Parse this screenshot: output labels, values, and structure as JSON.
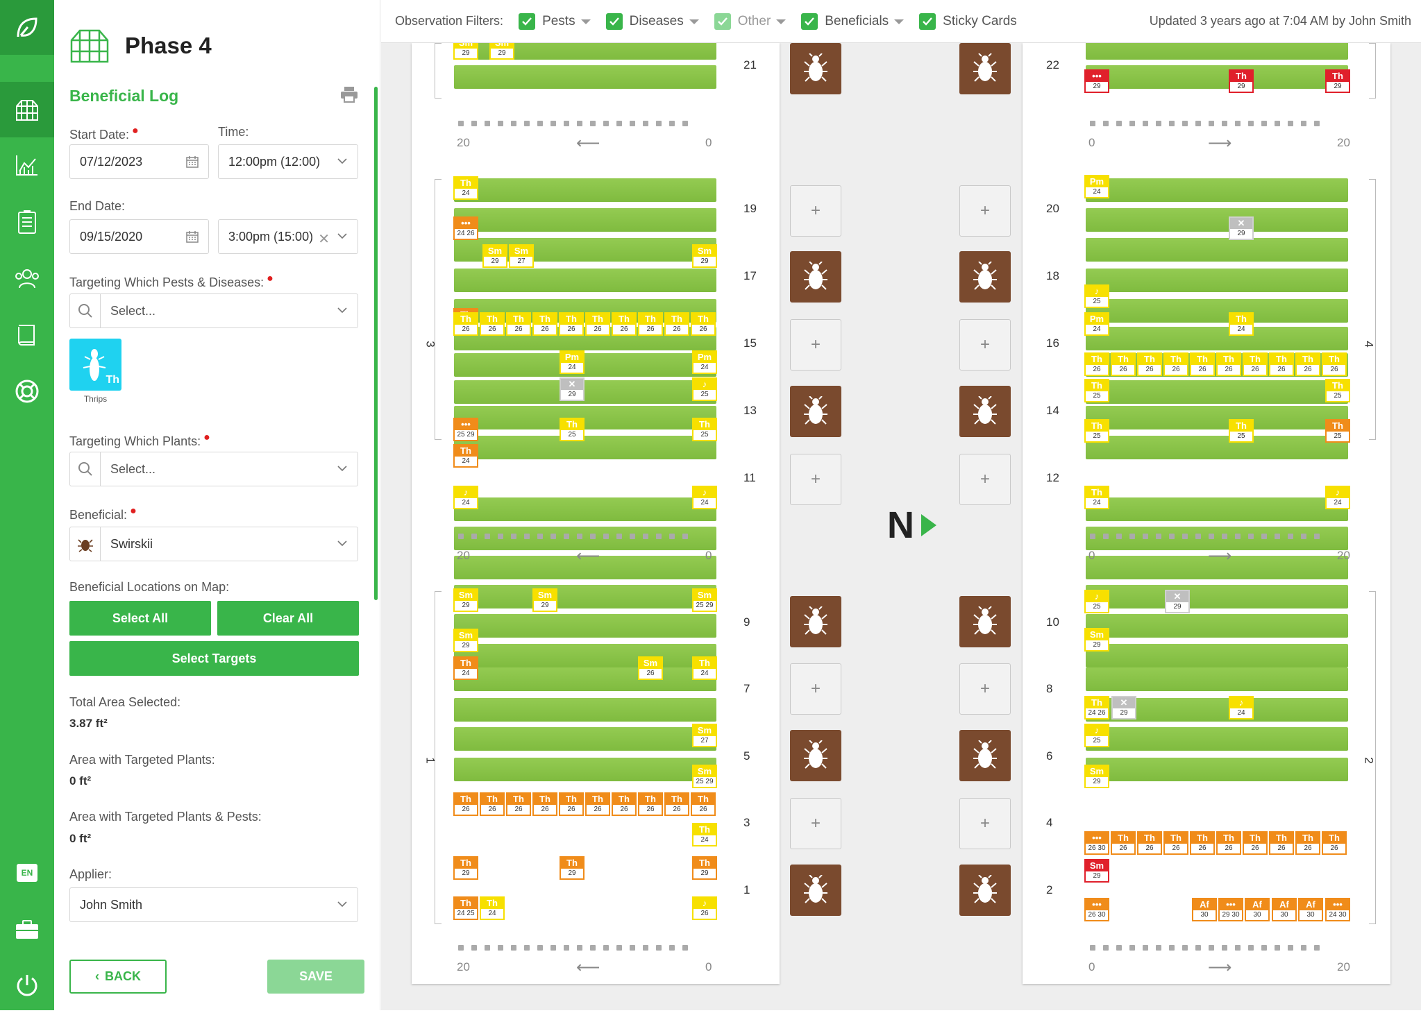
{
  "nav": {
    "items": [
      "greenhouse-icon",
      "chart-icon",
      "list-icon",
      "users-icon",
      "book-icon",
      "lifebuoy-icon"
    ],
    "lang": "EN"
  },
  "sidebar": {
    "page_title": "Phase 4",
    "section_title": "Beneficial Log",
    "start_date_label": "Start Date:",
    "start_date": "07/12/2023",
    "time_label": "Time:",
    "start_time": "12:00pm (12:00)",
    "end_date_label": "End Date:",
    "end_date": "09/15/2020",
    "end_time": "3:00pm (15:00)",
    "pests_label": "Targeting Which Pests & Diseases:",
    "pests_placeholder": "Select...",
    "pest_chip_label": "Thrips",
    "pest_chip_code": "Th",
    "plants_label": "Targeting Which Plants:",
    "plants_placeholder": "Select...",
    "beneficial_label": "Beneficial:",
    "beneficial_value": "Swirskii",
    "locations_label": "Beneficial Locations on Map:",
    "select_all": "Select All",
    "clear_all": "Clear All",
    "select_targets": "Select Targets",
    "total_area_label": "Total Area Selected:",
    "total_area": "3.87 ft²",
    "area_plants_label": "Area with Targeted Plants:",
    "area_plants": "0 ft²",
    "area_pests_label": "Area with Targeted Plants & Pests:",
    "area_pests": "0 ft²",
    "applier_label": "Applier:",
    "applier": "John Smith",
    "back": "BACK",
    "save": "SAVE"
  },
  "topbar": {
    "filters_label": "Observation Filters:",
    "filters": [
      {
        "label": "Pests",
        "checked": true,
        "light": false
      },
      {
        "label": "Diseases",
        "checked": true,
        "light": false
      },
      {
        "label": "Other",
        "checked": true,
        "light": true
      },
      {
        "label": "Beneficials",
        "checked": true,
        "light": false
      },
      {
        "label": "Sticky Cards",
        "checked": true,
        "light": false
      }
    ],
    "updated": "Updated 3 years ago at 7:04 AM by John Smith"
  },
  "map": {
    "north": "N",
    "left_numbers": [
      "21",
      "19",
      "17",
      "15",
      "13",
      "11",
      "9",
      "7",
      "5",
      "3",
      "1"
    ],
    "right_numbers": [
      "22",
      "20",
      "18",
      "16",
      "14",
      "12",
      "10",
      "8",
      "6",
      "4",
      "2"
    ],
    "axis_left": [
      "20",
      "0"
    ],
    "axis_right": [
      "0",
      "20"
    ],
    "bay_labels": [
      "3",
      "1",
      "4",
      "2"
    ],
    "tags_left": [
      {
        "c": "Sm",
        "n": "29",
        "t": "y"
      },
      {
        "c": "Sm",
        "n": "29",
        "t": "y"
      },
      {
        "c": "Th",
        "n": "24",
        "t": "y"
      },
      {
        "c": "•••",
        "n": "24 26",
        "t": "o"
      },
      {
        "c": "Sm",
        "n": "29",
        "t": "y"
      },
      {
        "c": "Sm",
        "n": "27",
        "t": "y"
      },
      {
        "c": "Sm",
        "n": "29",
        "t": "y"
      },
      {
        "c": "Th",
        "n": "26",
        "t": "o"
      },
      {
        "c": "Pm",
        "n": "24",
        "t": "y"
      },
      {
        "c": "Pm",
        "n": "24",
        "t": "y"
      },
      {
        "c": "✕",
        "n": "29",
        "t": "g"
      },
      {
        "c": "♪",
        "n": "25",
        "t": "y"
      },
      {
        "c": "•••",
        "n": "25 29",
        "t": "o"
      },
      {
        "c": "Th",
        "n": "25",
        "t": "y"
      },
      {
        "c": "Th",
        "n": "25",
        "t": "y"
      },
      {
        "c": "Th",
        "n": "24",
        "t": "o"
      },
      {
        "c": "♪",
        "n": "24",
        "t": "y"
      },
      {
        "c": "♪",
        "n": "24",
        "t": "y"
      },
      {
        "c": "Sm",
        "n": "29",
        "t": "y"
      },
      {
        "c": "Sm",
        "n": "29",
        "t": "y"
      },
      {
        "c": "Sm",
        "n": "25 29",
        "t": "y"
      },
      {
        "c": "Sm",
        "n": "29",
        "t": "y"
      },
      {
        "c": "Th",
        "n": "24",
        "t": "o"
      },
      {
        "c": "Sm",
        "n": "26",
        "t": "y"
      },
      {
        "c": "Th",
        "n": "24",
        "t": "y"
      },
      {
        "c": "Sm",
        "n": "27",
        "t": "y"
      },
      {
        "c": "Sm",
        "n": "25 29",
        "t": "y"
      },
      {
        "c": "Th",
        "n": "24",
        "t": "y"
      },
      {
        "c": "Th",
        "n": "29",
        "t": "o"
      },
      {
        "c": "Th",
        "n": "29",
        "t": "o"
      },
      {
        "c": "Th",
        "n": "29",
        "t": "o"
      },
      {
        "c": "Th",
        "n": "24 25",
        "t": "o"
      },
      {
        "c": "Th",
        "n": "24",
        "t": "y"
      },
      {
        "c": "♪",
        "n": "26",
        "t": "y"
      }
    ],
    "tags_right": [
      {
        "c": "•••",
        "n": "29",
        "t": "r"
      },
      {
        "c": "Th",
        "n": "29",
        "t": "r"
      },
      {
        "c": "Th",
        "n": "29",
        "t": "r"
      },
      {
        "c": "Pm",
        "n": "24",
        "t": "y"
      },
      {
        "c": "✕",
        "n": "29",
        "t": "g"
      },
      {
        "c": "♪",
        "n": "25",
        "t": "y"
      },
      {
        "c": "Pm",
        "n": "24",
        "t": "y"
      },
      {
        "c": "Th",
        "n": "24",
        "t": "y"
      },
      {
        "c": "Th",
        "n": "25",
        "t": "y"
      },
      {
        "c": "Th",
        "n": "25",
        "t": "y"
      },
      {
        "c": "Th",
        "n": "25",
        "t": "y"
      },
      {
        "c": "Th",
        "n": "25",
        "t": "y"
      },
      {
        "c": "Th",
        "n": "25",
        "t": "o"
      },
      {
        "c": "Th",
        "n": "24",
        "t": "y"
      },
      {
        "c": "♪",
        "n": "24",
        "t": "y"
      },
      {
        "c": "♪",
        "n": "25",
        "t": "y"
      },
      {
        "c": "✕",
        "n": "29",
        "t": "g"
      },
      {
        "c": "Sm",
        "n": "29",
        "t": "y"
      },
      {
        "c": "Th",
        "n": "24 26",
        "t": "y"
      },
      {
        "c": "✕",
        "n": "29",
        "t": "g"
      },
      {
        "c": "♪",
        "n": "24",
        "t": "y"
      },
      {
        "c": "♪",
        "n": "25",
        "t": "y"
      },
      {
        "c": "Sm",
        "n": "29",
        "t": "y"
      },
      {
        "c": "•••",
        "n": "26 30",
        "t": "o"
      },
      {
        "c": "Sm",
        "n": "29",
        "t": "r"
      },
      {
        "c": "•••",
        "n": "26 30",
        "t": "o"
      },
      {
        "c": "Af",
        "n": "30",
        "t": "o"
      },
      {
        "c": "•••",
        "n": "29 30",
        "t": "o"
      },
      {
        "c": "Af",
        "n": "30",
        "t": "o"
      },
      {
        "c": "Af",
        "n": "30",
        "t": "o"
      },
      {
        "c": "Af",
        "n": "30",
        "t": "o"
      },
      {
        "c": "•••",
        "n": "24 30",
        "t": "o"
      }
    ],
    "th_row_code": "Th",
    "th_row_num": "26"
  }
}
